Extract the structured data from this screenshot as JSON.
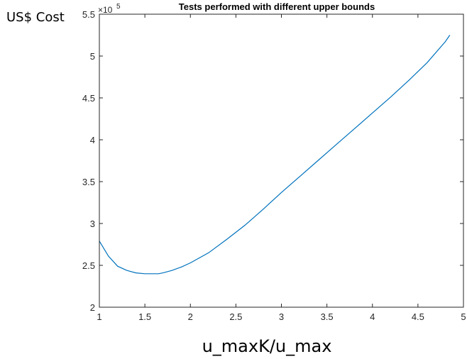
{
  "chart_data": {
    "type": "line",
    "title": "Tests performed with different upper bounds",
    "xlabel": "u_maxK/u_max",
    "ylabel": "US$ Cost",
    "y_exponent": {
      "base": "×10",
      "power": "5"
    },
    "xlim": [
      1,
      5
    ],
    "ylim": [
      2,
      5.5
    ],
    "x_ticks": [
      1,
      1.5,
      2,
      2.5,
      3,
      3.5,
      4,
      4.5,
      5
    ],
    "x_tick_labels": [
      "1",
      "1.5",
      "2",
      "2.5",
      "3",
      "3.5",
      "4",
      "4.5",
      "5"
    ],
    "y_ticks": [
      2,
      2.5,
      3,
      3.5,
      4,
      4.5,
      5,
      5.5
    ],
    "y_tick_labels": [
      "2",
      "2.5",
      "3",
      "3.5",
      "4",
      "4.5",
      "5",
      "5.5"
    ],
    "grid": false,
    "series": [
      {
        "color": "#0072bd",
        "x": [
          1.0,
          1.1,
          1.2,
          1.3,
          1.4,
          1.5,
          1.6,
          1.65,
          1.7,
          1.8,
          1.9,
          2.0,
          2.2,
          2.4,
          2.6,
          2.8,
          3.0,
          3.2,
          3.4,
          3.6,
          3.8,
          4.0,
          4.2,
          4.4,
          4.6,
          4.8,
          4.85
        ],
        "y": [
          2.79,
          2.61,
          2.49,
          2.44,
          2.41,
          2.4,
          2.4,
          2.4,
          2.41,
          2.44,
          2.48,
          2.53,
          2.65,
          2.81,
          2.98,
          3.17,
          3.37,
          3.56,
          3.75,
          3.94,
          4.13,
          4.32,
          4.51,
          4.71,
          4.92,
          5.17,
          5.25
        ]
      }
    ]
  }
}
